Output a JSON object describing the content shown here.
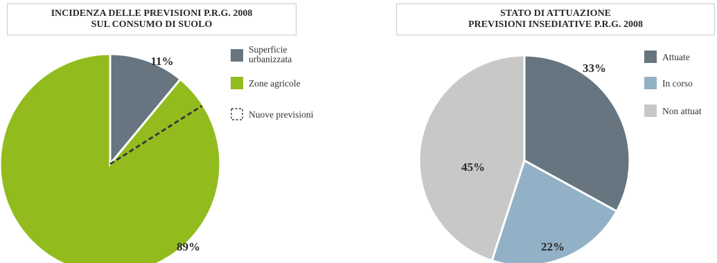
{
  "chart_data": [
    {
      "type": "pie",
      "title_lines": [
        "INCIDENZA DELLE PREVISIONI P.R.G. 2008",
        "SUL CONSUMO DI SUOLO"
      ],
      "slices": [
        {
          "name": "Superficie urbanizzata",
          "value": 11,
          "label": "11%",
          "color": "#66757f"
        },
        {
          "name": "Zone agricole",
          "value": 89,
          "label": "89%",
          "color": "#92bc1d"
        }
      ],
      "overlay": {
        "name": "Nuove previsioni",
        "style": "dashed",
        "value": 5
      },
      "legend": [
        {
          "lines": [
            "Superficie",
            "urbanizzata"
          ],
          "color": "#66757f"
        },
        {
          "lines": [
            "Zone agricole"
          ],
          "color": "#92bc1d"
        },
        {
          "lines": [
            "Nuove previsioni"
          ],
          "color": "dashed"
        }
      ],
      "legend_position": "right"
    },
    {
      "type": "pie",
      "title_lines": [
        "STATO DI ATTUAZIONE",
        "PREVISIONI INSEDIATIVE P.R.G. 2008"
      ],
      "slices": [
        {
          "name": "Attuate",
          "value": 33,
          "label": "33%",
          "color": "#66757f"
        },
        {
          "name": "In corso",
          "value": 22,
          "label": "22%",
          "color": "#93b1c6"
        },
        {
          "name": "Non attuate",
          "value": 45,
          "label": "45%",
          "color": "#c8c8c8"
        }
      ],
      "legend": [
        {
          "lines": [
            "Attuate"
          ],
          "color": "#66757f"
        },
        {
          "lines": [
            "In corso"
          ],
          "color": "#93b1c6"
        },
        {
          "lines": [
            "Non attuat"
          ],
          "color": "#c8c8c8"
        }
      ],
      "legend_position": "right"
    }
  ]
}
